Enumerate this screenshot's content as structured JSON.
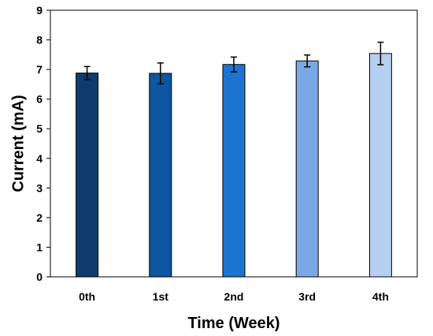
{
  "chart_data": {
    "type": "bar",
    "title": "",
    "xlabel": "Time (Week)",
    "ylabel": "Current (mA)",
    "categories": [
      "0th",
      "1st",
      "2nd",
      "3rd",
      "4th"
    ],
    "values": [
      6.88,
      6.87,
      7.17,
      7.29,
      7.54
    ],
    "errors": [
      0.22,
      0.35,
      0.25,
      0.2,
      0.38
    ],
    "ylim": [
      0,
      9
    ],
    "yticks": [
      0,
      1,
      2,
      3,
      4,
      5,
      6,
      7,
      8,
      9
    ],
    "grid": false,
    "colors": [
      "#0d3c6e",
      "#0e56a0",
      "#1c74d0",
      "#7aa8e4",
      "#b6ceef"
    ]
  }
}
